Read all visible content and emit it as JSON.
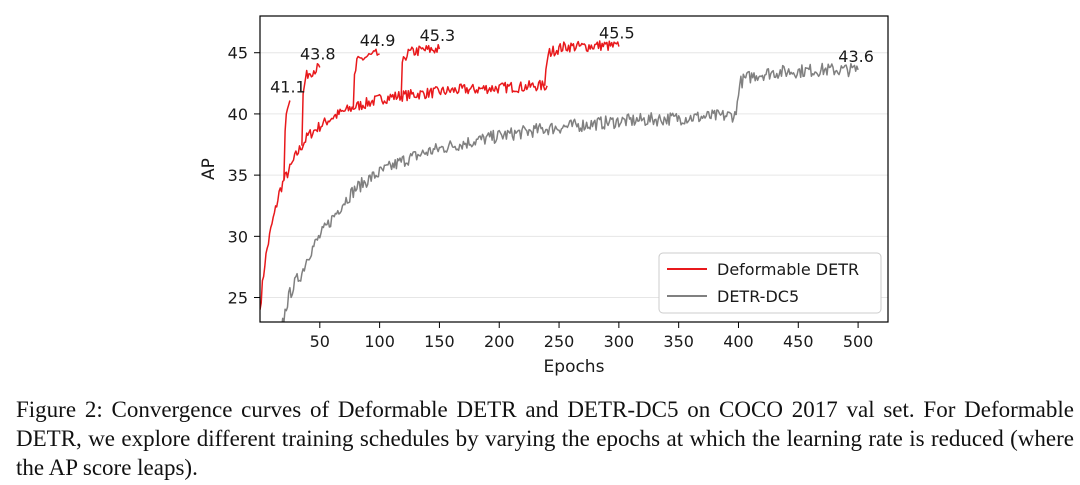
{
  "chart_data": {
    "type": "line",
    "xlabel": "Epochs",
    "ylabel": "AP",
    "xlim": [
      0,
      525
    ],
    "ylim": [
      23,
      48
    ],
    "xticks": [
      50,
      100,
      150,
      200,
      250,
      300,
      350,
      400,
      450,
      500
    ],
    "yticks": [
      25,
      30,
      35,
      40,
      45
    ],
    "grid": "horizontal",
    "legend_position": "bottom-right",
    "series": [
      {
        "name": "Deformable DETR",
        "color": "#e8191c",
        "segments": [
          {
            "x": [
              0,
              2,
              4,
              6,
              8,
              10,
              13,
              16,
              20,
              25,
              30,
              35,
              40,
              50,
              60,
              70,
              80,
              90,
              100,
              110,
              120,
              130,
              140,
              150,
              160,
              170,
              180,
              190,
              200,
              210,
              220,
              230,
              240
            ],
            "y": [
              24.0,
              26.0,
              27.8,
              29.0,
              30.0,
              31.0,
              32.2,
              33.5,
              34.6,
              35.5,
              36.6,
              37.4,
              38.2,
              39.0,
              39.7,
              40.2,
              40.6,
              40.9,
              41.2,
              41.4,
              41.5,
              41.6,
              41.7,
              41.8,
              41.9,
              42.0,
              42.0,
              42.1,
              42.1,
              42.2,
              42.2,
              42.3,
              42.3
            ]
          },
          {
            "x": [
              20,
              21,
              22,
              23,
              25
            ],
            "y": [
              34.6,
              38.5,
              40.3,
              40.8,
              41.1
            ]
          },
          {
            "x": [
              35,
              36,
              38,
              40,
              45,
              50
            ],
            "y": [
              37.4,
              41.5,
              42.9,
              43.3,
              43.6,
              43.8
            ]
          },
          {
            "x": [
              78,
              79,
              81,
              85,
              90,
              100
            ],
            "y": [
              40.5,
              43.0,
              44.2,
              44.5,
              44.7,
              44.9
            ]
          },
          {
            "x": [
              118,
              119,
              121,
              125,
              135,
              150
            ],
            "y": [
              41.4,
              43.8,
              44.7,
              45.0,
              45.2,
              45.3
            ]
          },
          {
            "x": [
              238,
              240,
              242,
              246,
              255,
              270,
              285,
              300
            ],
            "y": [
              42.3,
              44.4,
              45.0,
              45.2,
              45.5,
              45.5,
              45.6,
              45.5
            ]
          }
        ]
      },
      {
        "name": "DETR-DC5",
        "color": "#808080",
        "segments": [
          {
            "x": [
              18,
              20,
              22,
              25,
              30,
              35,
              40,
              50,
              60,
              70,
              80,
              90,
              100,
              120,
              140,
              160,
              180,
              200,
              220,
              240,
              260,
              280,
              300,
              320,
              340,
              360,
              380,
              398
            ],
            "y": [
              22.5,
              23.3,
              24.3,
              25.3,
              26.3,
              27.0,
              28.4,
              30.0,
              31.4,
              32.8,
              33.9,
              34.6,
              35.2,
              36.2,
              36.9,
              37.4,
              37.8,
              38.2,
              38.5,
              38.8,
              39.0,
              39.2,
              39.4,
              39.5,
              39.6,
              39.7,
              39.8,
              39.9
            ]
          },
          {
            "x": [
              398,
              400,
              402,
              406,
              415,
              430,
              450,
              470,
              490,
              500
            ],
            "y": [
              39.9,
              42.0,
              42.6,
              42.9,
              43.2,
              43.4,
              43.5,
              43.6,
              43.6,
              43.6
            ]
          }
        ]
      }
    ],
    "annotations": [
      {
        "text": "41.1",
        "x": 25,
        "y": 41.1
      },
      {
        "text": "43.8",
        "x": 50,
        "y": 43.8
      },
      {
        "text": "44.9",
        "x": 100,
        "y": 44.9
      },
      {
        "text": "45.3",
        "x": 150,
        "y": 45.3
      },
      {
        "text": "45.5",
        "x": 300,
        "y": 45.5
      },
      {
        "text": "43.6",
        "x": 500,
        "y": 43.6
      }
    ]
  },
  "caption": {
    "text": "Figure 2: Convergence curves of Deformable DETR and DETR-DC5 on COCO 2017 val set. For Deformable DETR, we explore different training schedules by varying the epochs at which the learning rate is reduced (where the AP score leaps)."
  }
}
